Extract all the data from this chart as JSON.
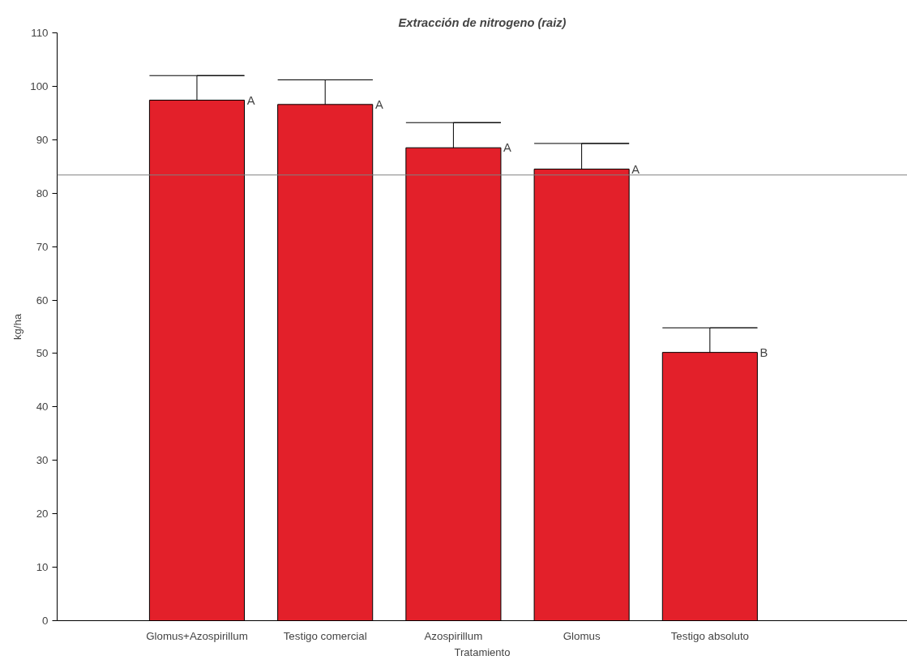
{
  "chart_data": {
    "type": "bar",
    "title": "Extracción de nitrogeno (raiz)",
    "xlabel": "Tratamiento",
    "ylabel": "kg/ha",
    "categories": [
      "Glomus+Azospirillum",
      "Testigo comercial",
      "Azospirillum",
      "Glomus",
      "Testigo absoluto"
    ],
    "values": [
      97.4,
      96.6,
      88.5,
      84.5,
      50.2
    ],
    "errors": [
      4.6,
      4.6,
      4.7,
      4.8,
      4.6
    ],
    "color": "#e3202a",
    "ylim": [
      0,
      110
    ],
    "yticks": [
      0,
      10,
      20,
      30,
      40,
      50,
      60,
      70,
      80,
      90,
      100,
      110
    ],
    "grid": false,
    "ref_lines": [
      {
        "axis": "y",
        "value": 83.4,
        "color": "#808080"
      }
    ],
    "annotations": [
      "A",
      "A",
      "A",
      "A",
      "B"
    ]
  }
}
